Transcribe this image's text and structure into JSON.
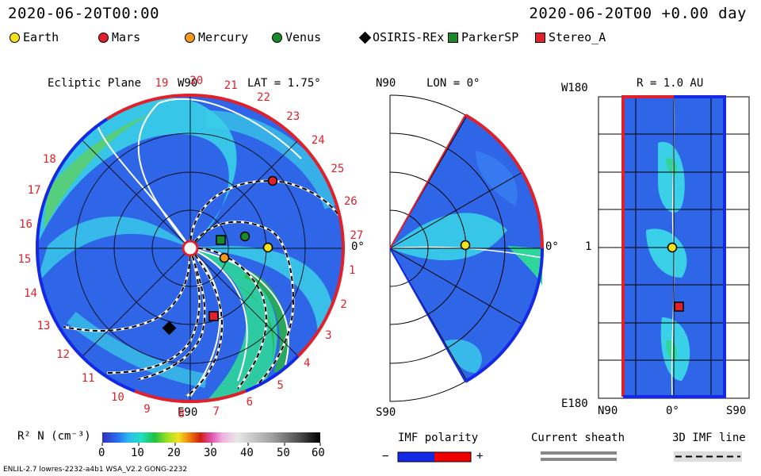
{
  "header": {
    "date_left": "2020-06-20T00:00",
    "date_right": "2020-06-20T00 +0.00 day"
  },
  "legend": [
    {
      "name": "Earth",
      "shape": "circle",
      "color": "#f5e21b"
    },
    {
      "name": "Mars",
      "shape": "circle",
      "color": "#e0202a"
    },
    {
      "name": "Mercury",
      "shape": "circle",
      "color": "#f59a1b"
    },
    {
      "name": "Venus",
      "shape": "circle",
      "color": "#1a8a2a"
    },
    {
      "name": "OSIRIS-REx",
      "shape": "diamond",
      "color": "#000000"
    },
    {
      "name": "ParkerSP",
      "shape": "square",
      "color": "#1a8a2a"
    },
    {
      "name": "Stereo_A",
      "shape": "square",
      "color": "#e0202a"
    }
  ],
  "panel1": {
    "title": "Ecliptic Plane",
    "lat": "LAT = 1.75°",
    "top": "W90",
    "bottom": "E90",
    "right": "0°",
    "rotation_numbers": [
      "19",
      "20",
      "21",
      "22",
      "23",
      "24",
      "25",
      "26",
      "27",
      "1",
      "2",
      "3",
      "4",
      "5",
      "6",
      "7",
      "8",
      "9",
      "10",
      "11",
      "12",
      "13",
      "14",
      "15",
      "16",
      "17",
      "18"
    ]
  },
  "panel2": {
    "top_left": "N90",
    "lon": "LON = 0°",
    "bottom_left": "S90",
    "right": "0°"
  },
  "panel3": {
    "radius": "R = 1.0 AU",
    "top_left": "W180",
    "bottom_left": "E180",
    "mid_left": "1",
    "x_left": "N90",
    "x_mid": "0°",
    "x_right": "S90"
  },
  "colorbar": {
    "label": "R² N (cm⁻³)",
    "ticks": [
      "0",
      "10",
      "20",
      "30",
      "40",
      "50",
      "60"
    ]
  },
  "imf": {
    "title": "IMF polarity",
    "minus": "−",
    "plus": "+"
  },
  "sheath": {
    "title": "Current sheath"
  },
  "imf3d": {
    "title": "3D IMF line"
  },
  "footer": {
    "left": "ENLIL-2.7 lowres-2232-a4b1 WSA_V2.2 GONG-2232"
  },
  "colors": {
    "red": "#e0202a",
    "blue": "#1428e6",
    "accent_green": "#1a8a2a"
  }
}
